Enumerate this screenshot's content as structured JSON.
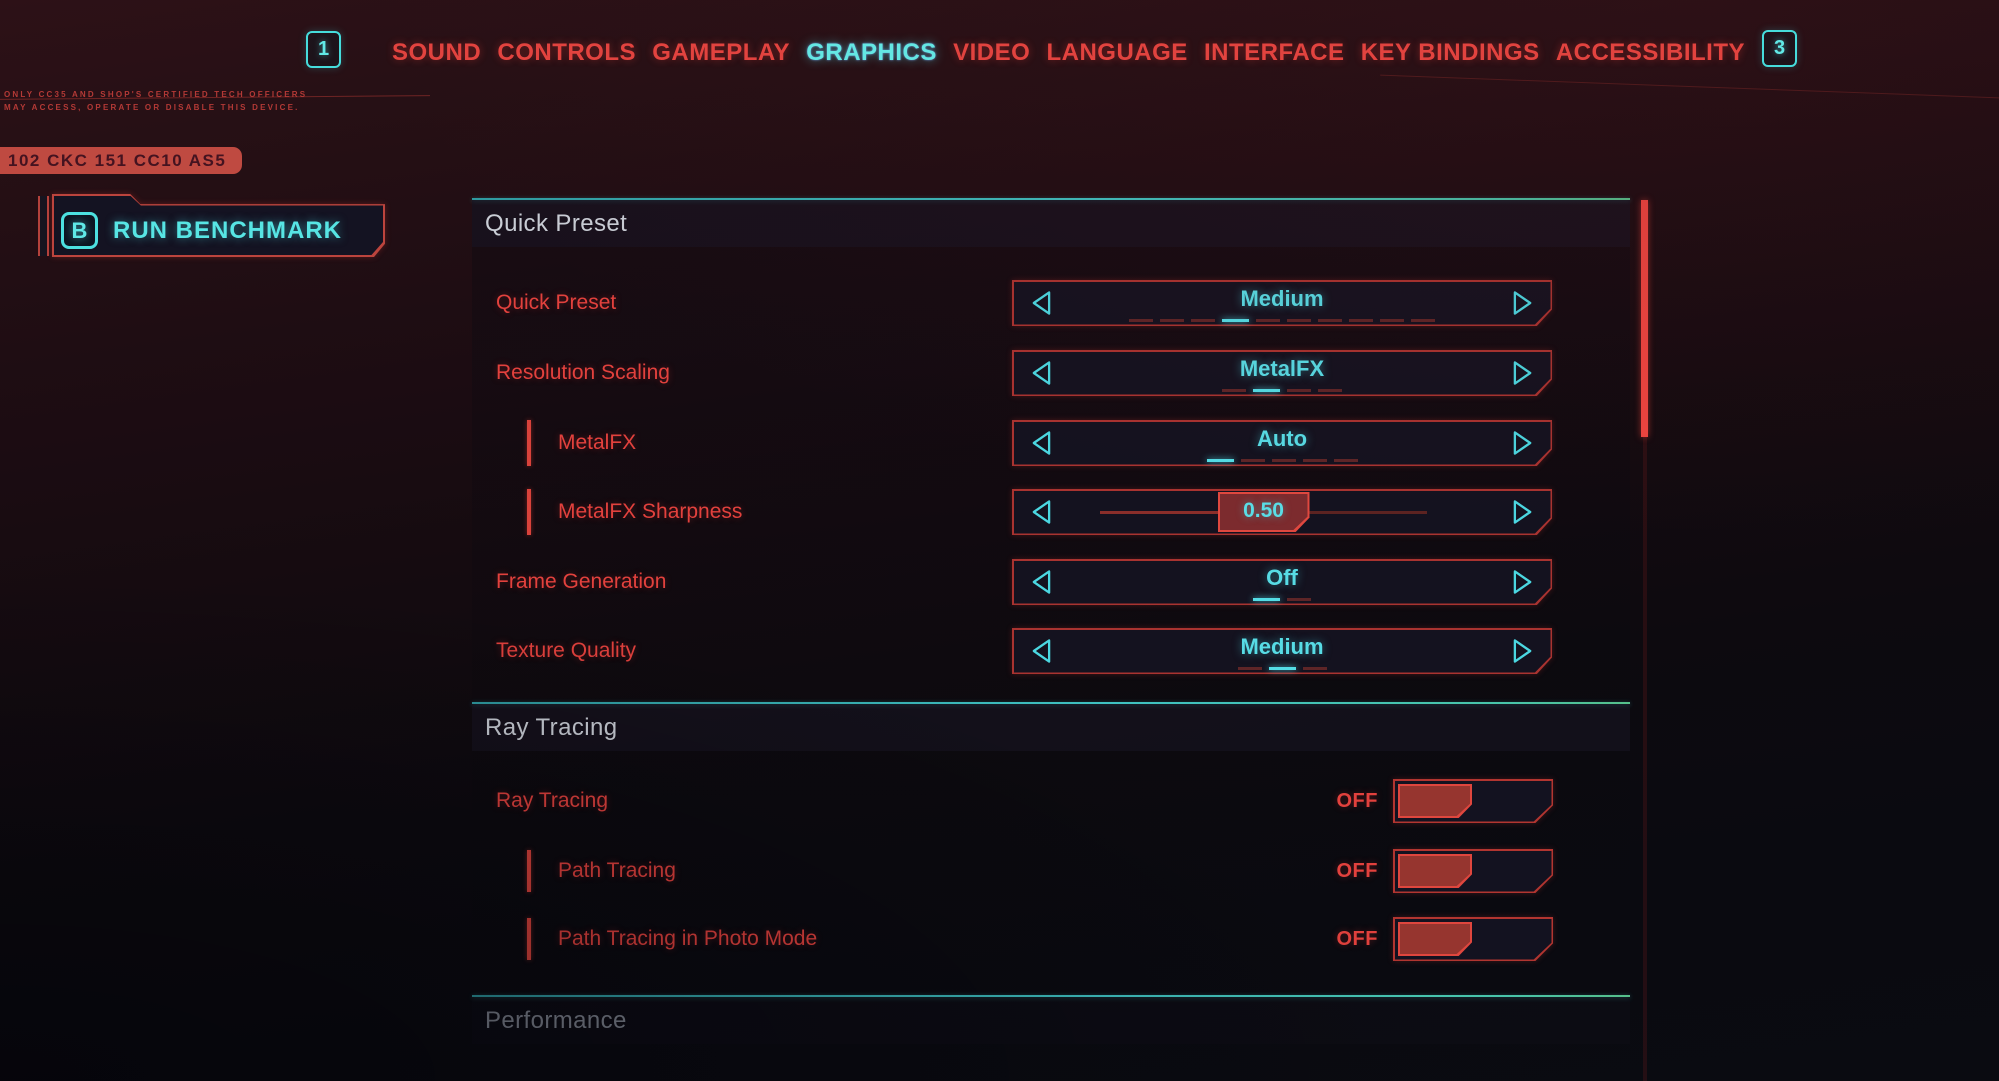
{
  "nav": {
    "left_key": "1",
    "right_key": "3",
    "items": [
      {
        "label": "SOUND",
        "active": false
      },
      {
        "label": "CONTROLS",
        "active": false
      },
      {
        "label": "GAMEPLAY",
        "active": false
      },
      {
        "label": "GRAPHICS",
        "active": true
      },
      {
        "label": "VIDEO",
        "active": false
      },
      {
        "label": "LANGUAGE",
        "active": false
      },
      {
        "label": "INTERFACE",
        "active": false
      },
      {
        "label": "KEY BINDINGS",
        "active": false
      },
      {
        "label": "ACCESSIBILITY",
        "active": false
      }
    ]
  },
  "decor": {
    "notice_line1": "ONLY CC35 AND SHOP'S CERTIFIED TECH OFFICERS",
    "notice_line2": "MAY ACCESS, OPERATE OR DISABLE THIS DEVICE.",
    "plate": "102 CKC 151 CC10 AS5"
  },
  "benchmark": {
    "key": "B",
    "label": "RUN BENCHMARK"
  },
  "sections": [
    {
      "title": "Quick Preset"
    },
    {
      "title": "Ray Tracing"
    },
    {
      "title": "Performance"
    }
  ],
  "settings": {
    "rows": [
      {
        "type": "selector",
        "label": "Quick Preset",
        "value": "Medium",
        "indent": false,
        "steps": 10,
        "active_step": 3
      },
      {
        "type": "selector",
        "label": "Resolution Scaling",
        "value": "MetalFX",
        "indent": false,
        "steps": 4,
        "active_step": 1
      },
      {
        "type": "selector",
        "label": "MetalFX",
        "value": "Auto",
        "indent": true,
        "steps": 5,
        "active_step": 0
      },
      {
        "type": "slider",
        "label": "MetalFX Sharpness",
        "value": "0.50",
        "indent": true,
        "fraction": 0.5
      },
      {
        "type": "selector",
        "label": "Frame Generation",
        "value": "Off",
        "indent": false,
        "steps": 2,
        "active_step": 0
      },
      {
        "type": "selector",
        "label": "Texture Quality",
        "value": "Medium",
        "indent": false,
        "steps": 3,
        "active_step": 1
      }
    ]
  },
  "ray_tracing": {
    "rows": [
      {
        "label": "Ray Tracing",
        "state": "OFF",
        "indent": false
      },
      {
        "label": "Path Tracing",
        "state": "OFF",
        "indent": true
      },
      {
        "label": "Path Tracing in Photo Mode",
        "state": "OFF",
        "indent": true
      }
    ]
  },
  "colors": {
    "accent_red": "#e2413d",
    "accent_cyan": "#58dde6",
    "selector_border": "#aa3331",
    "selector_bg": "#14121f",
    "section_line": "#3fc2c2",
    "scrollbar": "#ee4540",
    "bg_top": "#2d1117",
    "bg_bottom": "#0a0b11"
  }
}
